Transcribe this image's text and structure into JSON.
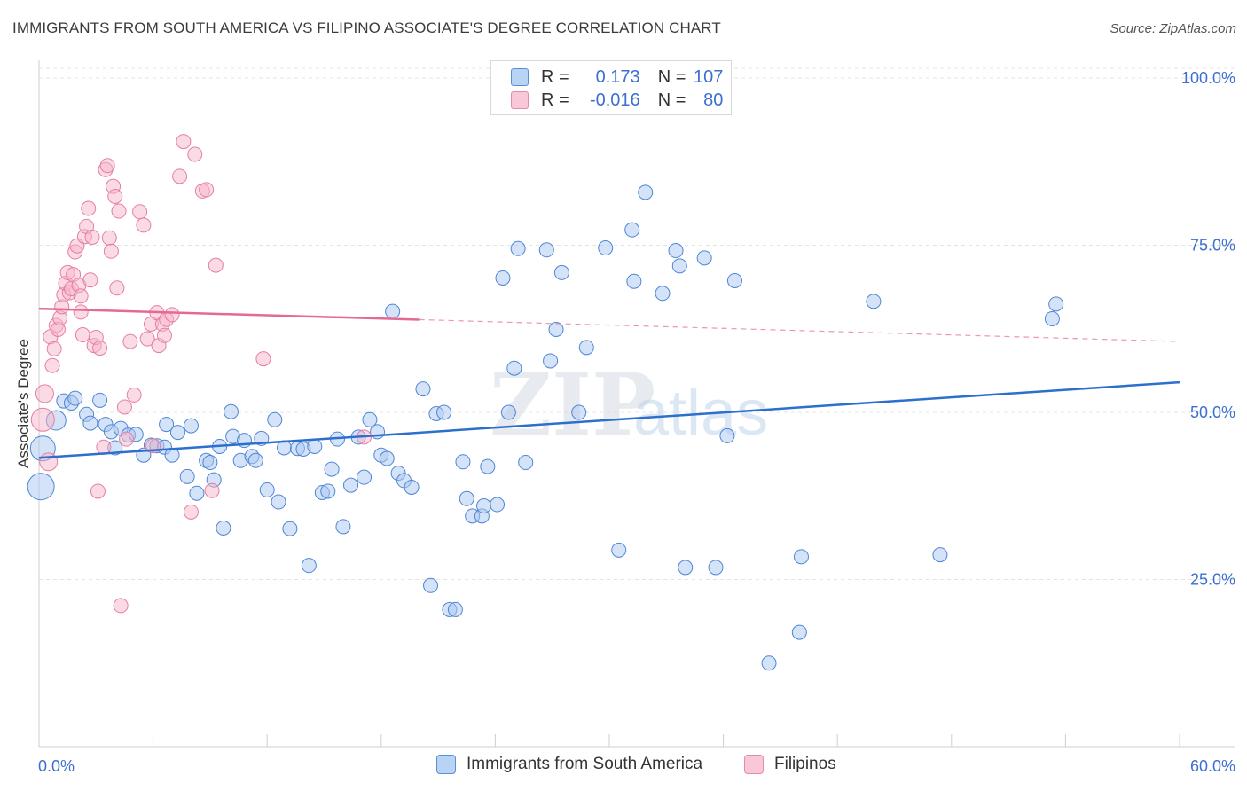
{
  "title": "IMMIGRANTS FROM SOUTH AMERICA VS FILIPINO ASSOCIATE'S DEGREE CORRELATION CHART",
  "source": "Source: ZipAtlas.com",
  "watermark": {
    "zip": "ZIP",
    "atlas": "atlas"
  },
  "colors": {
    "blue_fill": "#a9c8f0",
    "blue_stroke": "#4f86d6",
    "blue_line": "#2c6fcc",
    "pink_fill": "#f6b6ca",
    "pink_stroke": "#e67fa2",
    "pink_line": "#e46a93",
    "axis_label": "#3d6fd1",
    "grid": "#e4e4e4"
  },
  "legend": {
    "rows": [
      {
        "r_label": "R =",
        "r_value": "0.173",
        "n_label": "N =",
        "n_value": "107"
      },
      {
        "r_label": "R =",
        "r_value": "-0.016",
        "n_label": "N =",
        "n_value": "80"
      }
    ]
  },
  "bottom_legend": {
    "series1": "Immigrants from South America",
    "series2": "Filipinos"
  },
  "chart_data": {
    "type": "scatter",
    "xlabel": "",
    "ylabel": "Associate's Degree",
    "xlim": [
      0,
      60
    ],
    "ylim": [
      0,
      105
    ],
    "x_tick_labels": {
      "left": "0.0%",
      "right": "60.0%"
    },
    "y_ticks": [
      {
        "value": 25,
        "label": "25.0%"
      },
      {
        "value": 50,
        "label": "50.0%"
      },
      {
        "value": 75,
        "label": "75.0%"
      },
      {
        "value": 100,
        "label": "100.0%"
      }
    ],
    "series": [
      {
        "name": "Immigrants from South America",
        "color": "blue",
        "trend": {
          "x0": 0,
          "y0": 43.2,
          "x1": 60,
          "y1": 54.5,
          "solid_to": 60
        },
        "points": [
          [
            0.1,
            38.9,
            14
          ],
          [
            0.2,
            44.6,
            13
          ],
          [
            0.9,
            48.8,
            10
          ],
          [
            1.3,
            51.7,
            7
          ],
          [
            1.7,
            51.4,
            7
          ],
          [
            1.9,
            52.1,
            7
          ],
          [
            2.5,
            49.7,
            7
          ],
          [
            2.7,
            48.4,
            7
          ],
          [
            3.2,
            51.8,
            7
          ],
          [
            3.5,
            48.2,
            7
          ],
          [
            3.8,
            47.1,
            7
          ],
          [
            4.0,
            44.7,
            7
          ],
          [
            4.3,
            47.6,
            7
          ],
          [
            4.7,
            46.6,
            7
          ],
          [
            5.1,
            46.7,
            7
          ],
          [
            5.5,
            43.6,
            7
          ],
          [
            5.9,
            45.1,
            7
          ],
          [
            6.2,
            45.0,
            7
          ],
          [
            6.6,
            44.8,
            7
          ],
          [
            6.7,
            48.2,
            7
          ],
          [
            7.0,
            43.6,
            7
          ],
          [
            7.3,
            47.0,
            7
          ],
          [
            7.8,
            40.4,
            7
          ],
          [
            8.0,
            48.0,
            7
          ],
          [
            8.3,
            37.9,
            7
          ],
          [
            8.8,
            42.8,
            7
          ],
          [
            9.0,
            42.5,
            7
          ],
          [
            9.2,
            39.9,
            7
          ],
          [
            9.5,
            44.9,
            7
          ],
          [
            9.7,
            32.7,
            7
          ],
          [
            10.1,
            50.1,
            7
          ],
          [
            10.2,
            46.4,
            7
          ],
          [
            10.6,
            42.8,
            7
          ],
          [
            10.8,
            45.8,
            7
          ],
          [
            11.2,
            43.4,
            7
          ],
          [
            11.4,
            42.8,
            7
          ],
          [
            11.7,
            46.1,
            7
          ],
          [
            12.0,
            38.4,
            7
          ],
          [
            12.4,
            48.9,
            7
          ],
          [
            12.6,
            36.6,
            7
          ],
          [
            12.9,
            44.7,
            7
          ],
          [
            13.2,
            32.6,
            7
          ],
          [
            13.6,
            44.6,
            7
          ],
          [
            13.9,
            44.5,
            7
          ],
          [
            14.2,
            27.1,
            7
          ],
          [
            14.5,
            44.9,
            7
          ],
          [
            14.9,
            38.0,
            7
          ],
          [
            15.2,
            38.2,
            7
          ],
          [
            15.4,
            41.5,
            7
          ],
          [
            15.7,
            46.0,
            7
          ],
          [
            16.0,
            32.9,
            7
          ],
          [
            16.4,
            39.1,
            7
          ],
          [
            16.8,
            46.3,
            7
          ],
          [
            17.1,
            40.3,
            7
          ],
          [
            17.4,
            48.9,
            7
          ],
          [
            17.8,
            47.1,
            7
          ],
          [
            18.0,
            43.6,
            7
          ],
          [
            18.3,
            43.1,
            7
          ],
          [
            18.6,
            65.1,
            7
          ],
          [
            18.9,
            40.9,
            7
          ],
          [
            19.2,
            39.8,
            7
          ],
          [
            19.6,
            38.8,
            7
          ],
          [
            20.2,
            53.5,
            7
          ],
          [
            20.6,
            24.1,
            7
          ],
          [
            20.9,
            49.8,
            7
          ],
          [
            21.3,
            50.0,
            7
          ],
          [
            21.6,
            20.5,
            7
          ],
          [
            21.9,
            20.5,
            7
          ],
          [
            22.3,
            42.6,
            7
          ],
          [
            22.5,
            37.1,
            7
          ],
          [
            22.8,
            34.5,
            7
          ],
          [
            23.3,
            34.5,
            7
          ],
          [
            23.4,
            36.0,
            7
          ],
          [
            23.6,
            41.9,
            7
          ],
          [
            24.1,
            36.2,
            7
          ],
          [
            24.4,
            70.1,
            7
          ],
          [
            24.7,
            50.0,
            7
          ],
          [
            25.0,
            56.6,
            7
          ],
          [
            25.2,
            74.5,
            7
          ],
          [
            25.6,
            42.5,
            7
          ],
          [
            26.7,
            74.3,
            7
          ],
          [
            26.9,
            57.7,
            7
          ],
          [
            27.2,
            62.4,
            7
          ],
          [
            27.5,
            70.9,
            7
          ],
          [
            28.4,
            50.0,
            7
          ],
          [
            28.8,
            59.7,
            7
          ],
          [
            29.8,
            74.6,
            7
          ],
          [
            30.5,
            29.4,
            7
          ],
          [
            31.2,
            77.3,
            7
          ],
          [
            31.9,
            82.9,
            7
          ],
          [
            31.3,
            69.6,
            7
          ],
          [
            32.8,
            67.8,
            7
          ],
          [
            33.5,
            74.2,
            7
          ],
          [
            33.7,
            71.9,
            7
          ],
          [
            34.0,
            26.8,
            7
          ],
          [
            35.0,
            73.1,
            7
          ],
          [
            35.6,
            26.8,
            7
          ],
          [
            36.2,
            46.5,
            7
          ],
          [
            36.6,
            69.7,
            7
          ],
          [
            38.4,
            12.5,
            7
          ],
          [
            40.0,
            17.1,
            7
          ],
          [
            40.1,
            28.4,
            7
          ],
          [
            43.9,
            66.6,
            7
          ],
          [
            47.4,
            28.7,
            7
          ],
          [
            53.3,
            64.0,
            7
          ],
          [
            53.5,
            66.2,
            7
          ]
        ]
      },
      {
        "name": "Filipinos",
        "color": "pink",
        "trend": {
          "x0": 0,
          "y0": 65.5,
          "x1": 60,
          "y1": 60.6,
          "solid_to": 20
        },
        "points": [
          [
            0.2,
            48.9,
            12
          ],
          [
            0.3,
            52.8,
            9
          ],
          [
            0.5,
            42.6,
            9
          ],
          [
            0.6,
            61.3,
            7
          ],
          [
            0.7,
            57.0,
            7
          ],
          [
            0.8,
            59.5,
            7
          ],
          [
            0.9,
            63.0,
            7
          ],
          [
            1.0,
            62.4,
            7
          ],
          [
            1.1,
            64.1,
            7
          ],
          [
            1.2,
            65.8,
            7
          ],
          [
            1.3,
            67.6,
            7
          ],
          [
            1.4,
            69.3,
            7
          ],
          [
            1.5,
            70.9,
            7
          ],
          [
            1.6,
            67.9,
            7
          ],
          [
            1.7,
            68.5,
            7
          ],
          [
            1.8,
            70.6,
            7
          ],
          [
            1.9,
            74.0,
            7
          ],
          [
            2.0,
            74.9,
            7
          ],
          [
            2.1,
            69.0,
            7
          ],
          [
            2.2,
            67.4,
            7
          ],
          [
            2.2,
            65.0,
            7
          ],
          [
            2.3,
            61.6,
            7
          ],
          [
            2.4,
            76.3,
            7
          ],
          [
            2.5,
            77.8,
            7
          ],
          [
            2.6,
            80.5,
            7
          ],
          [
            2.7,
            69.8,
            7
          ],
          [
            2.8,
            76.2,
            7
          ],
          [
            2.9,
            60.0,
            7
          ],
          [
            3.0,
            61.2,
            7
          ],
          [
            3.1,
            38.2,
            7
          ],
          [
            3.2,
            59.6,
            7
          ],
          [
            3.4,
            44.8,
            7
          ],
          [
            3.5,
            86.3,
            7
          ],
          [
            3.6,
            86.9,
            7
          ],
          [
            3.7,
            76.1,
            7
          ],
          [
            3.8,
            74.1,
            7
          ],
          [
            3.9,
            83.8,
            7
          ],
          [
            4.0,
            82.3,
            7
          ],
          [
            4.1,
            68.6,
            7
          ],
          [
            4.2,
            80.1,
            7
          ],
          [
            4.3,
            21.1,
            7
          ],
          [
            4.5,
            50.8,
            7
          ],
          [
            4.6,
            46.0,
            7
          ],
          [
            4.8,
            60.6,
            7
          ],
          [
            5.0,
            52.6,
            7
          ],
          [
            5.3,
            80.0,
            7
          ],
          [
            5.5,
            78.0,
            7
          ],
          [
            5.7,
            61.0,
            7
          ],
          [
            5.9,
            63.2,
            7
          ],
          [
            6.0,
            45.0,
            7
          ],
          [
            6.2,
            64.9,
            7
          ],
          [
            6.3,
            60.0,
            7
          ],
          [
            6.5,
            63.2,
            7
          ],
          [
            6.6,
            61.5,
            7
          ],
          [
            6.7,
            63.9,
            7
          ],
          [
            7.0,
            64.6,
            7
          ],
          [
            7.4,
            85.3,
            7
          ],
          [
            7.6,
            90.5,
            7
          ],
          [
            8.0,
            35.1,
            7
          ],
          [
            8.2,
            88.6,
            7
          ],
          [
            8.6,
            83.1,
            7
          ],
          [
            8.8,
            83.3,
            7
          ],
          [
            9.1,
            38.3,
            7
          ],
          [
            9.3,
            72.0,
            7
          ],
          [
            11.8,
            58.0,
            7
          ],
          [
            17.1,
            46.3,
            7
          ]
        ]
      }
    ]
  }
}
